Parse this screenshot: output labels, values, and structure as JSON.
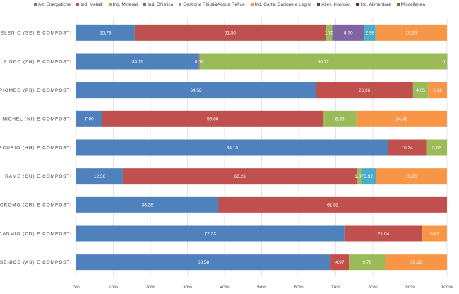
{
  "chart_data": {
    "type": "bar",
    "orientation": "horizontal",
    "stacked": "percent",
    "categories": [
      "SELENIO (SE) E COMPOSTI",
      "ZINCO (ZN) E COMPOSTI",
      "PIOMBO (PB) E COMPOSTI",
      "NICHEL (NI) E COMPOSTI",
      "MERCURIO (HG) E COMPOSTI",
      "RAME (CU) E COMPOSTI",
      "CROMO (CR) E COMPOSTI",
      "CADMIO (CD) E COMPOSTI",
      "ARSENICO (AS) E COMPOSTI"
    ],
    "series": [
      {
        "name": "Att. Energetiche",
        "color": "#4f81bd",
        "values": [
          15.78,
          33.11,
          64.58,
          7.0,
          84.15,
          12.56,
          38.38,
          72.33,
          68.58
        ],
        "labels": [
          "15,78",
          "33,11",
          "64,58",
          "7,00",
          "84,15",
          "12,56",
          "38,38",
          "72,33",
          "68,58"
        ]
      },
      {
        "name": "Ind. Metalli",
        "color": "#c0504d",
        "values": [
          51.5,
          0.16,
          26.26,
          59.6,
          10.24,
          63.21,
          61.62,
          21.04,
          4.97
        ],
        "labels": [
          "51,50",
          "0,16",
          "26,26",
          "59,60",
          "10,24",
          "63,21",
          "61,62",
          "21,04",
          "4,97"
        ]
      },
      {
        "name": "Ind. Minerali",
        "color": "#9bbb59",
        "values": [
          1.75,
          66.72,
          4.05,
          8.95,
          5.62,
          1.07,
          0,
          0,
          9.79
        ],
        "labels": [
          "1,75",
          "66,72",
          "4,05",
          "8,95",
          "5,62",
          "1,07",
          "",
          "",
          "9,79"
        ]
      },
      {
        "name": "Ind. Chimica",
        "color": "#8064a2",
        "values": [
          8.7,
          0,
          0,
          0,
          0,
          0,
          0,
          0,
          0
        ],
        "labels": [
          "8,70",
          "",
          "",
          "",
          "",
          "",
          "",
          "",
          ""
        ]
      },
      {
        "name": "Gestione Rifiuti&Acque Reflue",
        "color": "#4bacc6",
        "values": [
          2.98,
          0,
          0,
          0,
          0,
          3.92,
          0,
          0,
          0
        ],
        "labels": [
          "2,98",
          "",
          "",
          "",
          "",
          "3,92",
          "",
          "",
          ""
        ]
      },
      {
        "name": "Ind. Carta, Cartone e Legno",
        "color": "#f79646",
        "values": [
          19.29,
          0,
          5.12,
          24.45,
          0,
          19.23,
          0,
          6.62,
          16.66
        ],
        "labels": [
          "19,29",
          "",
          "5,12",
          "24,45",
          "",
          "19,23",
          "",
          "6,62",
          "16,66"
        ]
      },
      {
        "name": "Allev. Intensivi",
        "color": "#2c4d75",
        "values": [
          0,
          0,
          0,
          0,
          0,
          0,
          0,
          0,
          0
        ],
        "labels": [
          "",
          "",
          "",
          "",
          "",
          "",
          "",
          "",
          ""
        ]
      },
      {
        "name": "Ind. Alimentare",
        "color": "#772c2a",
        "values": [
          0,
          0,
          0,
          0,
          0,
          0,
          0,
          0,
          0
        ],
        "labels": [
          "",
          "",
          "",
          "",
          "",
          "",
          "",
          "",
          ""
        ]
      },
      {
        "name": "Miscellanea",
        "color": "#5f7530",
        "values": [
          0,
          0.01,
          0,
          0,
          0,
          0,
          0,
          0,
          0
        ],
        "labels": [
          "",
          "0,",
          "",
          "",
          "",
          "",
          "",
          "",
          ""
        ]
      }
    ],
    "xlim": [
      0,
      100
    ],
    "x_ticks": [
      "0%",
      "10%",
      "20%",
      "30%",
      "40%",
      "50%",
      "60%",
      "70%",
      "80%",
      "90%",
      "100%"
    ],
    "grid": true,
    "legend_position": "top"
  }
}
